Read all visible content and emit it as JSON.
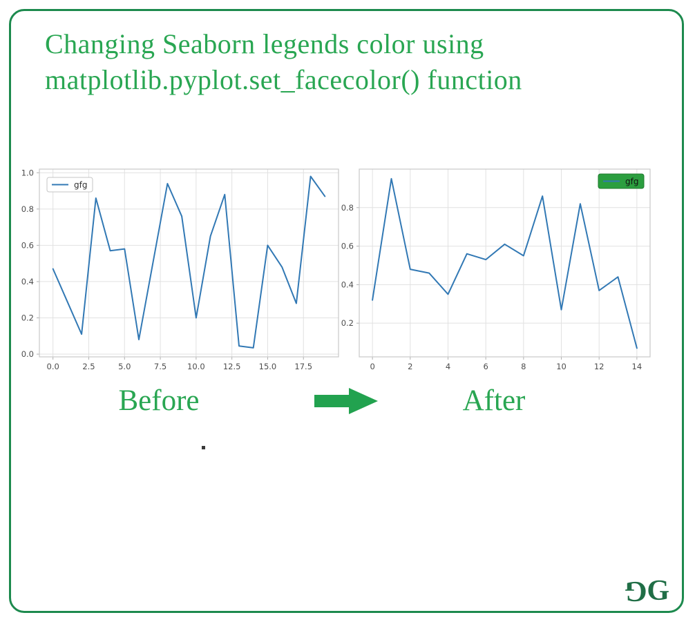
{
  "page": {
    "title_line1": "Changing Seaborn legends color using",
    "title_line2": "matplotlib.pyplot.set_facecolor() function",
    "before_label": "Before",
    "after_label": "After"
  },
  "logo": {
    "flipped_g": "G",
    "g": "G"
  },
  "colors": {
    "title_green": "#29a652",
    "border_green": "#1d8a4e",
    "arrow_green": "#22a24f",
    "logo_green": "#206e46",
    "line_blue": "#3178b4",
    "grid": "#e1e1e1",
    "spine": "#c8c8c8",
    "tick": "#b0b0b0",
    "tick_label": "#4d4d4d"
  },
  "chart_data": [
    {
      "type": "line",
      "name": "before",
      "title": "",
      "xlabel": "",
      "ylabel": "",
      "grid": true,
      "x": [
        0,
        1,
        2,
        3,
        4,
        5,
        6,
        7,
        8,
        9,
        10,
        11,
        12,
        13,
        14,
        15,
        16,
        17,
        18,
        19
      ],
      "series": [
        {
          "name": "gfg",
          "color": "#3178b4",
          "values": [
            0.47,
            0.29,
            0.11,
            0.86,
            0.57,
            0.58,
            0.08,
            0.51,
            0.94,
            0.76,
            0.2,
            0.65,
            0.88,
            0.045,
            0.035,
            0.6,
            0.48,
            0.28,
            0.98,
            0.87
          ]
        }
      ],
      "xlim": [
        -0.95,
        19.95
      ],
      "ylim": [
        -0.015,
        1.02
      ],
      "xtick_values": [
        0,
        2.5,
        5,
        7.5,
        10,
        12.5,
        15,
        17.5
      ],
      "xtick_labels": [
        "0.0",
        "2.5",
        "5.0",
        "7.5",
        "10.0",
        "12.5",
        "15.0",
        "17.5"
      ],
      "ytick_values": [
        0,
        0.2,
        0.4,
        0.6,
        0.8,
        1.0
      ],
      "ytick_labels": [
        "0.0",
        "0.2",
        "0.4",
        "0.6",
        "0.8",
        "1.0"
      ],
      "legend": {
        "label": "gfg",
        "position": "upper-left",
        "facecolor": "#ffffff",
        "edgecolor": "#c4c4c4",
        "textcolor": "#333333"
      }
    },
    {
      "type": "line",
      "name": "after",
      "title": "",
      "xlabel": "",
      "ylabel": "",
      "grid": true,
      "x": [
        0,
        1,
        2,
        3,
        4,
        5,
        6,
        7,
        8,
        9,
        10,
        11,
        12,
        13,
        14
      ],
      "series": [
        {
          "name": "gfg",
          "color": "#3178b4",
          "values": [
            0.32,
            0.95,
            0.48,
            0.46,
            0.35,
            0.56,
            0.53,
            0.61,
            0.55,
            0.86,
            0.27,
            0.82,
            0.37,
            0.44,
            0.07
          ]
        }
      ],
      "xlim": [
        -0.7,
        14.7
      ],
      "ylim": [
        0.025,
        1.0
      ],
      "xtick_values": [
        0,
        2,
        4,
        6,
        8,
        10,
        12,
        14
      ],
      "xtick_labels": [
        "0",
        "2",
        "4",
        "6",
        "8",
        "10",
        "12",
        "14"
      ],
      "ytick_values": [
        0.2,
        0.4,
        0.6,
        0.8
      ],
      "ytick_labels": [
        "0.2",
        "0.4",
        "0.6",
        "0.8"
      ],
      "legend": {
        "label": "gfg",
        "position": "upper-right",
        "facecolor": "#2b9e3f",
        "edgecolor": "#1f7a2e",
        "textcolor": "#111111"
      }
    }
  ]
}
